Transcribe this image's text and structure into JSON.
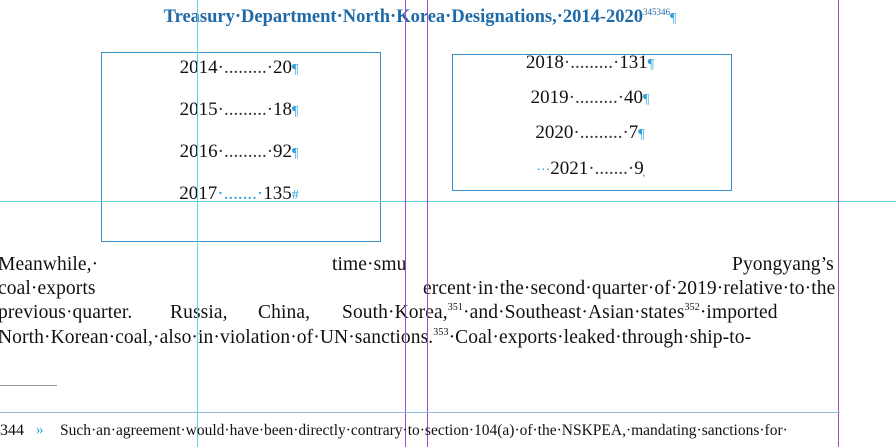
{
  "title": {
    "text": "Treasury·Department·North·Korea·Designations,·2014-2020",
    "sup": "345346",
    "pilcrow": "¶"
  },
  "table_left": [
    {
      "year": "2014",
      "dots": "·.........·",
      "count": "20",
      "mark": "¶"
    },
    {
      "year": "2015",
      "dots": "·.........·",
      "count": "18",
      "mark": "¶"
    },
    {
      "year": "2016",
      "dots": "·.........·",
      "count": "92",
      "mark": "¶"
    },
    {
      "year": "2017",
      "dots": "·.......·",
      "count": "135",
      "mark": "#"
    }
  ],
  "table_right": [
    {
      "year": "2018",
      "dots": "·.........·",
      "count": "131",
      "mark": "¶",
      "lead": ""
    },
    {
      "year": "2019",
      "dots": "·.........·",
      "count": "40",
      "mark": "¶",
      "lead": ""
    },
    {
      "year": "2020",
      "dots": "·.........·",
      "count": "7",
      "mark": "¶",
      "lead": ""
    },
    {
      "year": "2021",
      "dots": "·.......·",
      "count": "9",
      "mark": "̦",
      "lead": "···"
    }
  ],
  "body": {
    "line1_a": "Meanwhile,·",
    "line1_b": "time·smu",
    "line1_c": "Pyongyang’s",
    "line2_a": "coal·exports",
    "line2_b": "ercent·in·the·second·quarter·of·2019·relative·to·the",
    "line3_a": "previous·quarter.",
    "line3_b": "Russia,",
    "line3_c": "China,",
    "line3_d": "South·Korea,",
    "line3_sup1": "351",
    "line3_e": "·and·Southeast·Asian·states",
    "line3_sup2": "352",
    "line3_f": "·imported",
    "line4_a": "North·Korean·coal,·also·in·violation·of·UN·sanctions.",
    "line4_sup": "353",
    "line4_b": "·Coal·exports·leaked·through·ship-to-"
  },
  "footnote": {
    "number": "344",
    "arrow": "»",
    "text": "Such·an·agreement·would·have·been·directly·contrary·to·section·104(a)·of·the·NSKPEA,·mandating·sanctions·for·"
  },
  "colors": {
    "title": "#1e6aa8",
    "frame": "#3a8fc8",
    "guide_cyan": "#5fd3e0",
    "guide_magenta": "#a14bc8",
    "hidden_char": "#2a9fd8"
  }
}
